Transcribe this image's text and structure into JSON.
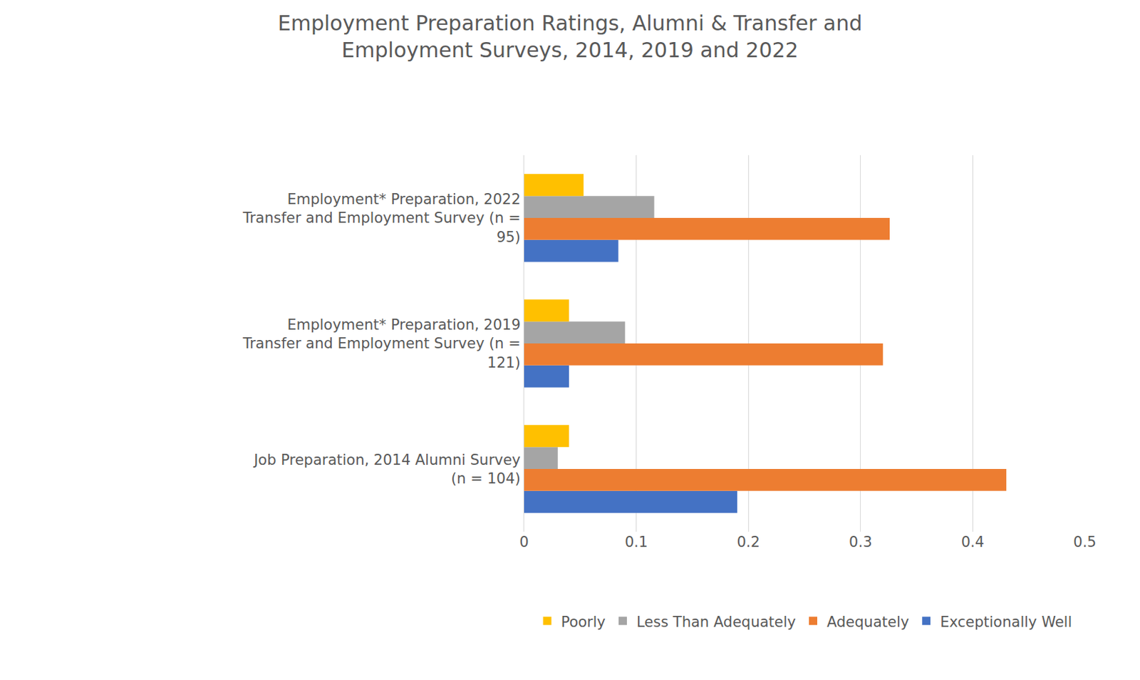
{
  "chart_data": {
    "type": "bar",
    "orientation": "horizontal",
    "title": "Employment Preparation Ratings, Alumni & Transfer and Employment Surveys, 2014, 2019 and 2022",
    "categories": [
      "Job Preparation, 2014 Alumni Survey (n = 104)",
      "Employment* Preparation, 2019 Transfer and Employment Survey (n = 121)",
      "Employment* Preparation, 2022 Transfer and Employment Survey (n = 95)"
    ],
    "series": [
      {
        "name": "Poorly",
        "color": "#ffc000",
        "values": [
          0.04,
          0.04,
          0.053
        ]
      },
      {
        "name": "Less Than Adequately",
        "color": "#a5a5a5",
        "values": [
          0.03,
          0.09,
          0.116
        ]
      },
      {
        "name": "Adequately",
        "color": "#ed7d31",
        "values": [
          0.43,
          0.32,
          0.326
        ]
      },
      {
        "name": "Exceptionally Well",
        "color": "#4472c4",
        "values": [
          0.19,
          0.04,
          0.084
        ]
      }
    ],
    "xlim": [
      0,
      0.5
    ],
    "xticks": [
      0,
      0.1,
      0.2,
      0.3,
      0.4,
      0.5
    ],
    "grid": true,
    "legend": "bottom"
  }
}
